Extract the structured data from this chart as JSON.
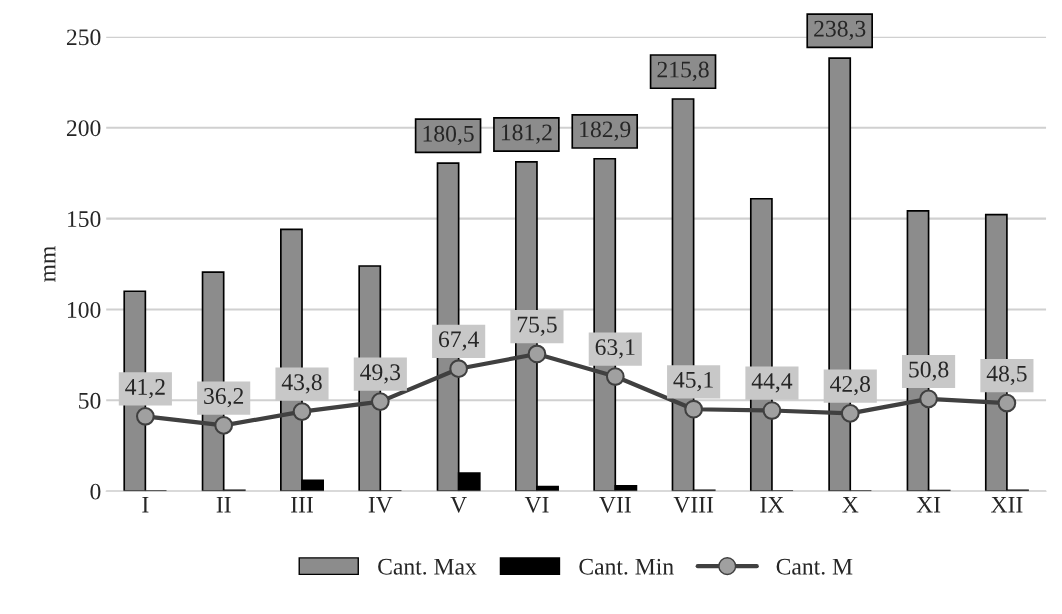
{
  "chart_data": {
    "type": "bar",
    "ylabel": "mm",
    "categories": [
      "I",
      "II",
      "III",
      "IV",
      "V",
      "VI",
      "VII",
      "VIII",
      "IX",
      "X",
      "XI",
      "XII"
    ],
    "series": [
      {
        "name": "Cant. Max",
        "color": "#8c8c8c",
        "values": [
          110,
          120.5,
          144.1,
          123.9,
          180.5,
          181.2,
          182.9,
          215.8,
          160.9,
          238.3,
          154.2,
          152.2
        ],
        "value_labels": [
          null,
          null,
          null,
          null,
          "180,5",
          "181,2",
          "182,9",
          "215,8",
          null,
          "238,3",
          null,
          null
        ]
      },
      {
        "name": "Cant. Min",
        "color": "#000000",
        "values": [
          0,
          0.5,
          6,
          0,
          10,
          2.5,
          3,
          0.5,
          0,
          0,
          0.3,
          0.5
        ]
      },
      {
        "name": "Cant. M",
        "type": "line",
        "color": "#404040",
        "values": [
          41.2,
          36.2,
          43.8,
          49.3,
          67.4,
          75.5,
          63.1,
          45.1,
          44.4,
          42.8,
          50.8,
          48.5
        ],
        "value_labels": [
          "41,2",
          "36,2",
          "43,8",
          "49,3",
          "67,4",
          "75,5",
          "63,1",
          "45,1",
          "44,4",
          "42,8",
          "50,8",
          "48,5"
        ]
      }
    ],
    "ylim": [
      0,
      250
    ],
    "yticks": [
      0,
      50,
      100,
      150,
      200,
      250
    ],
    "grid": "y",
    "legend": "bottom",
    "marker": "circle",
    "line_style": "solid"
  }
}
